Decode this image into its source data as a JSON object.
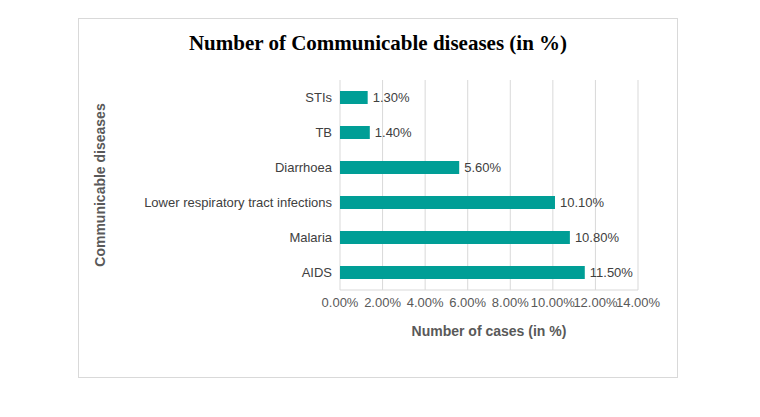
{
  "chart_data": {
    "type": "bar",
    "title": "Number of Communicable diseases (in %)",
    "x_label": "Number of cases (in %)",
    "y_label": "Communicable diseases",
    "orientation": "horizontal",
    "categories": [
      "STIs",
      "TB",
      "Diarrhoea",
      "Lower respiratory tract infections",
      "Malaria",
      "AIDS"
    ],
    "values": [
      1.3,
      1.4,
      5.6,
      10.1,
      10.8,
      11.5
    ],
    "value_labels": [
      "1.30%",
      "1.40%",
      "5.60%",
      "10.10%",
      "10.80%",
      "11.50%"
    ],
    "color": "#009E96",
    "xlim": [
      0,
      14
    ],
    "xticks": [
      {
        "value": 0,
        "label": "0.00%"
      },
      {
        "value": 2,
        "label": "2.00%"
      },
      {
        "value": 4,
        "label": "4.00%"
      },
      {
        "value": 6,
        "label": "6.00%"
      },
      {
        "value": 8,
        "label": "8.00%"
      },
      {
        "value": 10,
        "label": "10.00%"
      },
      {
        "value": 12,
        "label": "12.00%"
      },
      {
        "value": 14,
        "label": "14.00%"
      }
    ],
    "grid": true,
    "data_labels": true
  }
}
